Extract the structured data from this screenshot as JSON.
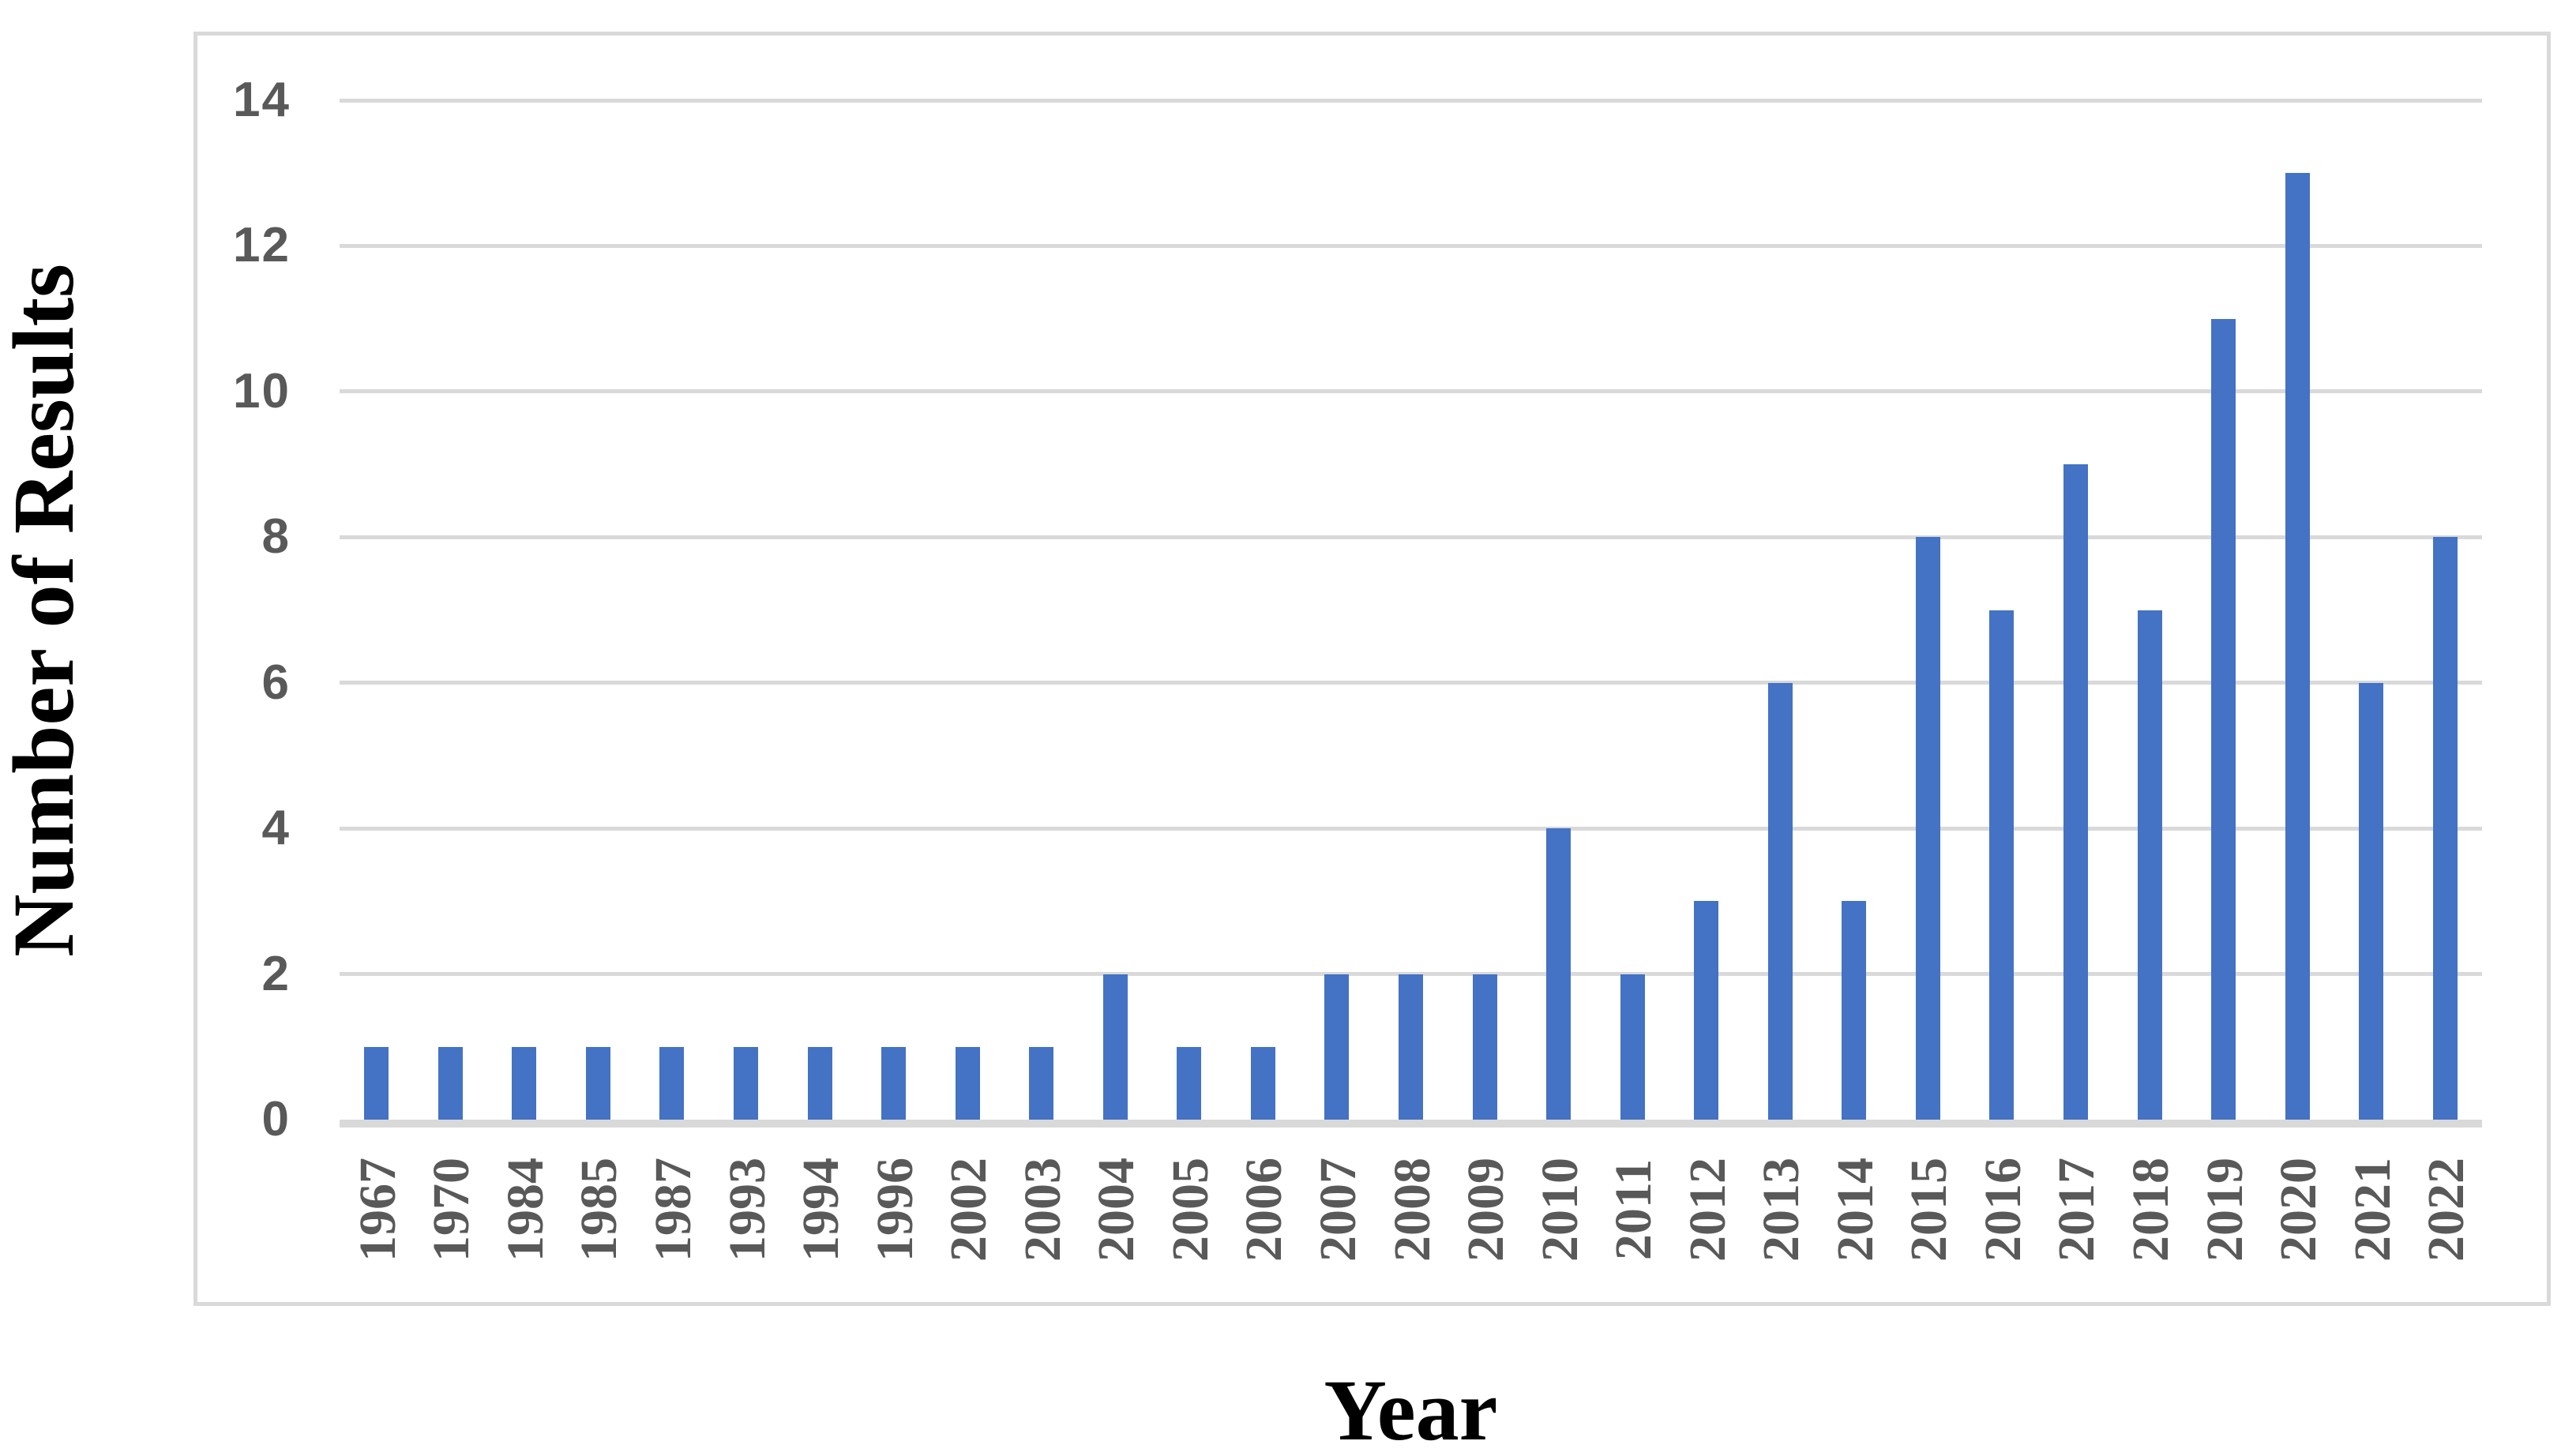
{
  "chart_data": {
    "type": "bar",
    "title": "",
    "xlabel": "Year",
    "ylabel": "Number of Results",
    "categories": [
      "1967",
      "1970",
      "1984",
      "1985",
      "1987",
      "1993",
      "1994",
      "1996",
      "2002",
      "2003",
      "2004",
      "2005",
      "2006",
      "2007",
      "2008",
      "2009",
      "2010",
      "2011",
      "2012",
      "2013",
      "2014",
      "2015",
      "2016",
      "2017",
      "2018",
      "2019",
      "2020",
      "2021",
      "2022"
    ],
    "values": [
      1,
      1,
      1,
      1,
      1,
      1,
      1,
      1,
      1,
      1,
      2,
      1,
      1,
      2,
      2,
      2,
      4,
      2,
      3,
      6,
      3,
      8,
      7,
      9,
      7,
      11,
      13,
      6,
      8
    ],
    "ylim": [
      0,
      14
    ],
    "yticks": [
      0,
      2,
      4,
      6,
      8,
      10,
      12,
      14
    ],
    "grid": true,
    "legend": "none",
    "colors": {
      "bar": "#4472c4",
      "gridline": "#d9d9d9",
      "axis_line": "#d9d9d9",
      "frame_border": "#d9d9d9",
      "tick_label": "#595959",
      "axis_title": "#000000",
      "background": "#ffffff"
    }
  }
}
